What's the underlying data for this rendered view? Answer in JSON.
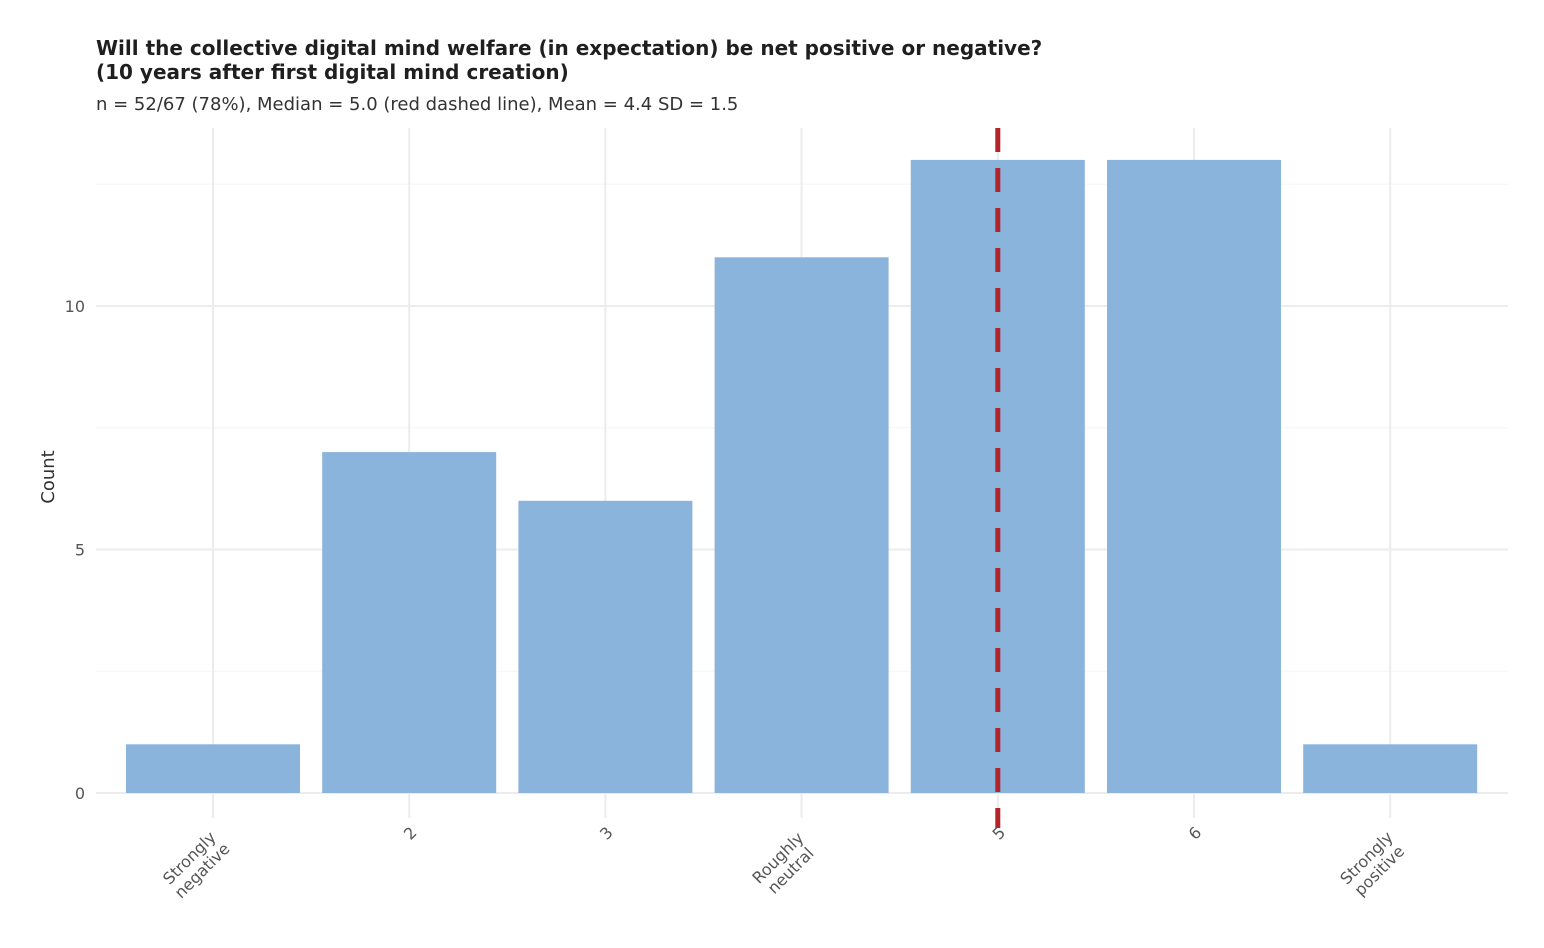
{
  "chart_data": {
    "type": "bar",
    "title_lines": [
      "Will the collective digital mind welfare (in expectation) be net positive or negative?",
      "(10 years after first digital mind creation)"
    ],
    "subtitle": "n = 52/67 (78%), Median = 5.0 (red dashed line), Mean = 4.4 SD = 1.5",
    "xlabel": "",
    "ylabel": "Count",
    "categories": [
      [
        "Strongly",
        "negative"
      ],
      [
        "2"
      ],
      [
        "3"
      ],
      [
        "Roughly",
        "neutral"
      ],
      [
        "5"
      ],
      [
        "6"
      ],
      [
        "Strongly",
        "positive"
      ]
    ],
    "values": [
      1,
      7,
      6,
      11,
      13,
      13,
      1
    ],
    "ylim": [
      0,
      13.6
    ],
    "yticks": [
      0,
      5,
      10
    ],
    "median_position": 5,
    "grid": true,
    "legend": "none",
    "colors": {
      "bar": "#8ab4dc",
      "median_line": "#b2242a",
      "grid": "#ececec"
    }
  }
}
